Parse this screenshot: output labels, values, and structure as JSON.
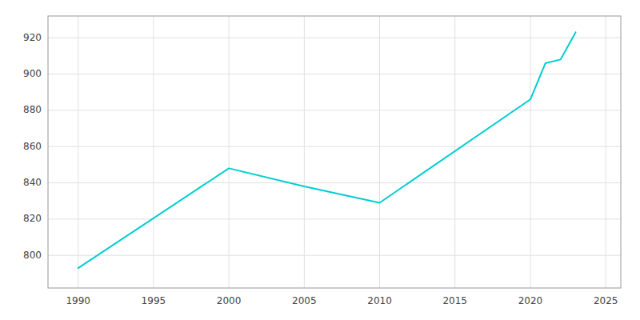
{
  "chart_data": {
    "type": "line",
    "x": [
      1990,
      2000,
      2005,
      2010,
      2020,
      2021,
      2022,
      2023
    ],
    "values": [
      793,
      848,
      838,
      829,
      886,
      906,
      908,
      923
    ],
    "color": "#00CED1",
    "xlim": [
      1988,
      2026
    ],
    "ylim": [
      782,
      932
    ],
    "xticks": [
      1990,
      1995,
      2000,
      2005,
      2010,
      2015,
      2020,
      2025
    ],
    "yticks": [
      800,
      820,
      840,
      860,
      880,
      900,
      920
    ],
    "grid": true
  }
}
